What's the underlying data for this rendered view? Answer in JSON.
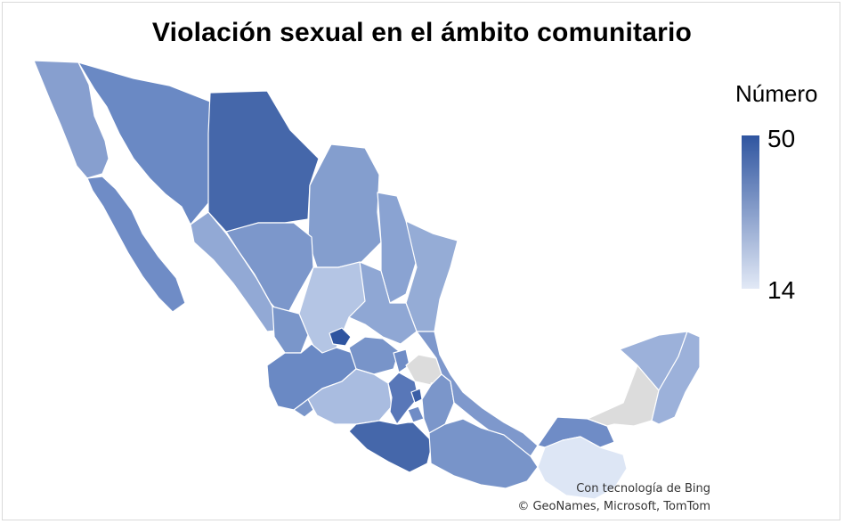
{
  "title": "Violación sexual en el ámbito comunitario",
  "legend": {
    "title": "Número",
    "max_label": "50",
    "min_label": "14",
    "max_color": "#2f55a0",
    "min_color": "#dde6f5"
  },
  "credits": {
    "line1": "Con tecnología de Bing",
    "line2": "© GeoNames, Microsoft, TomTom"
  },
  "colors": {
    "no_data": "#dcdcdc",
    "border": "#ffffff"
  }
}
